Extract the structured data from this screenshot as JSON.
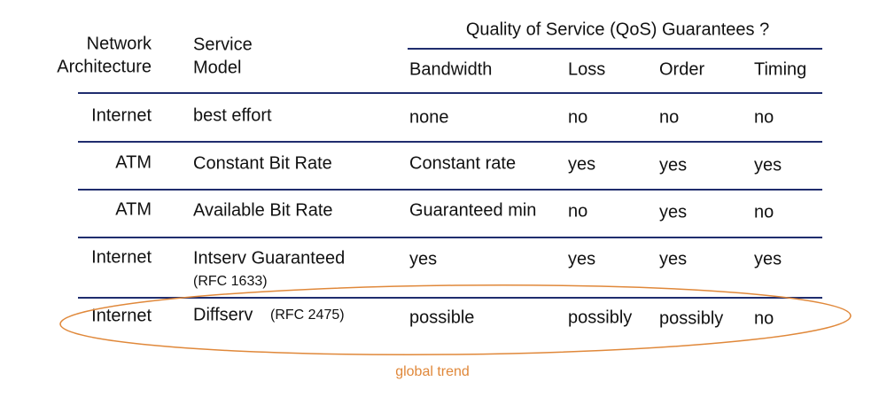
{
  "table": {
    "group_header": "Quality of Service (QoS) Guarantees ?",
    "header": [
      [
        "Network",
        "Architecture"
      ],
      [
        "Service",
        "Model"
      ],
      [
        "Bandwidth"
      ],
      [
        "Loss"
      ],
      [
        "Order"
      ],
      [
        "Timing"
      ]
    ],
    "rows": [
      [
        "Internet",
        {
          "text": "best effort"
        },
        "none",
        "no",
        "no",
        "no"
      ],
      [
        "ATM",
        {
          "text": "Constant Bit Rate"
        },
        "Constant rate",
        "yes",
        "yes",
        "yes"
      ],
      [
        "ATM",
        {
          "text": "Available Bit Rate"
        },
        "Guaranteed min",
        "no",
        "yes",
        "no"
      ],
      [
        "Internet",
        {
          "text": "Intserv Guaranteed",
          "note": "(RFC 1633)"
        },
        "yes",
        "yes",
        "yes",
        "yes"
      ],
      [
        "Internet",
        {
          "text": "Diffserv",
          "note": "(RFC 2475)"
        },
        "possible",
        "possibly",
        "possibly",
        "no"
      ]
    ],
    "annotation": "global trend"
  }
}
